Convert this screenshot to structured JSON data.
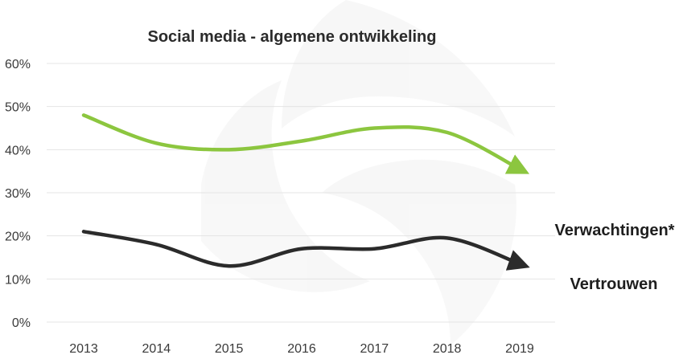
{
  "chart_data": {
    "type": "line",
    "title": "Social media - algemene ontwikkeling",
    "x": [
      "2013",
      "2014",
      "2015",
      "2016",
      "2017",
      "2018",
      "2019"
    ],
    "y_ticks": [
      "0%",
      "10%",
      "20%",
      "30%",
      "40%",
      "50%",
      "60%"
    ],
    "ylim": [
      0,
      60
    ],
    "grid": true,
    "series": [
      {
        "name": "Verwachtingen*",
        "color": "#8cc63f",
        "values": [
          48,
          41.5,
          40,
          42,
          45,
          44,
          35.5
        ]
      },
      {
        "name": "Vertrouwen",
        "color": "#2b2b2b",
        "values": [
          21,
          18,
          13,
          17,
          17,
          19.5,
          13.5
        ]
      }
    ]
  }
}
